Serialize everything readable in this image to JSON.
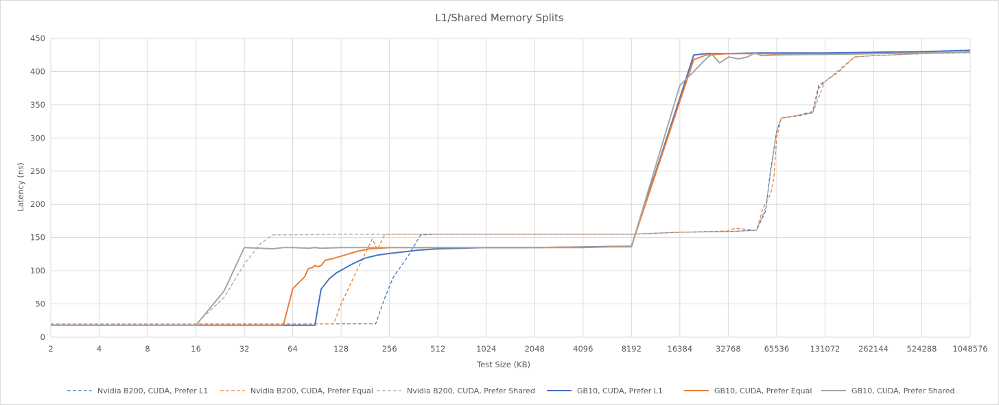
{
  "chart_data": {
    "type": "line",
    "title": "L1/Shared Memory Splits",
    "xlabel": "Test Size (KB)",
    "ylabel": "Latency (ns)",
    "x_scale": "log2",
    "xlim": [
      2,
      1048576
    ],
    "ylim": [
      0,
      450
    ],
    "x_ticks": [
      "2",
      "4",
      "8",
      "16",
      "32",
      "64",
      "128",
      "256",
      "512",
      "1024",
      "2048",
      "4096",
      "8192",
      "16384",
      "32768",
      "65536",
      "131072",
      "262144",
      "524288",
      "1048576"
    ],
    "y_ticks": [
      "0",
      "50",
      "100",
      "150",
      "200",
      "250",
      "300",
      "350",
      "400",
      "450"
    ],
    "grid": true,
    "legend_position": "bottom",
    "series": [
      {
        "name": "Nvidia B200, CUDA, Prefer L1",
        "color": "#4472c4",
        "dash": "dashed",
        "points": [
          [
            2,
            20
          ],
          [
            16,
            20
          ],
          [
            64,
            20
          ],
          [
            128,
            20
          ],
          [
            160,
            20
          ],
          [
            210,
            20
          ],
          [
            240,
            60
          ],
          [
            270,
            90
          ],
          [
            330,
            120
          ],
          [
            400,
            154
          ],
          [
            512,
            155
          ],
          [
            1024,
            155
          ],
          [
            4096,
            155
          ],
          [
            8192,
            155
          ],
          [
            16384,
            158
          ],
          [
            32768,
            159
          ],
          [
            49152,
            161
          ],
          [
            56000,
            190
          ],
          [
            60000,
            250
          ],
          [
            65536,
            310
          ],
          [
            70000,
            330
          ],
          [
            90000,
            334
          ],
          [
            110000,
            340
          ],
          [
            120000,
            380
          ],
          [
            131072,
            385
          ],
          [
            160000,
            400
          ],
          [
            200000,
            422
          ],
          [
            262144,
            424
          ],
          [
            524288,
            427
          ],
          [
            1048576,
            430
          ]
        ]
      },
      {
        "name": "Nvidia B200, CUDA, Prefer Equal",
        "color": "#ed7d31",
        "dash": "dashed",
        "points": [
          [
            2,
            20
          ],
          [
            16,
            20
          ],
          [
            64,
            20
          ],
          [
            100,
            20
          ],
          [
            115,
            20
          ],
          [
            128,
            50
          ],
          [
            160,
            100
          ],
          [
            200,
            148
          ],
          [
            215,
            132
          ],
          [
            240,
            155
          ],
          [
            512,
            155
          ],
          [
            1024,
            155
          ],
          [
            4096,
            155
          ],
          [
            8192,
            155
          ],
          [
            16384,
            158
          ],
          [
            32768,
            160
          ],
          [
            36000,
            164
          ],
          [
            49152,
            161
          ],
          [
            54000,
            195
          ],
          [
            60000,
            215
          ],
          [
            63000,
            240
          ],
          [
            65536,
            300
          ],
          [
            70000,
            330
          ],
          [
            90000,
            333
          ],
          [
            110000,
            338
          ],
          [
            120000,
            375
          ],
          [
            131072,
            385
          ],
          [
            160000,
            400
          ],
          [
            200000,
            422
          ],
          [
            262144,
            424
          ],
          [
            524288,
            427
          ],
          [
            1048576,
            429
          ]
        ]
      },
      {
        "name": "Nvidia B200, CUDA, Prefer Shared",
        "color": "#a5a5a5",
        "dash": "dashed",
        "points": [
          [
            2,
            20
          ],
          [
            16,
            20
          ],
          [
            24,
            60
          ],
          [
            32,
            110
          ],
          [
            40,
            140
          ],
          [
            48,
            154
          ],
          [
            64,
            154
          ],
          [
            128,
            155
          ],
          [
            256,
            155
          ],
          [
            512,
            155
          ],
          [
            1024,
            155
          ],
          [
            4096,
            155
          ],
          [
            8192,
            155
          ],
          [
            16384,
            158
          ],
          [
            32768,
            159
          ],
          [
            49152,
            161
          ],
          [
            56000,
            195
          ],
          [
            65536,
            310
          ],
          [
            70000,
            330
          ],
          [
            110000,
            338
          ],
          [
            131072,
            385
          ],
          [
            200000,
            422
          ],
          [
            262144,
            424
          ],
          [
            524288,
            427
          ],
          [
            1048576,
            428
          ]
        ]
      },
      {
        "name": "GB10, CUDA, Prefer L1",
        "color": "#4472c4",
        "dash": "solid",
        "points": [
          [
            2,
            18
          ],
          [
            16,
            18
          ],
          [
            64,
            18
          ],
          [
            88,
            18
          ],
          [
            96,
            72
          ],
          [
            108,
            88
          ],
          [
            120,
            97
          ],
          [
            150,
            110
          ],
          [
            180,
            119
          ],
          [
            220,
            124
          ],
          [
            256,
            126
          ],
          [
            384,
            131
          ],
          [
            512,
            133
          ],
          [
            1024,
            135
          ],
          [
            2048,
            135
          ],
          [
            4096,
            136
          ],
          [
            8192,
            137
          ],
          [
            16384,
            360
          ],
          [
            20000,
            425
          ],
          [
            24000,
            427
          ],
          [
            32768,
            427
          ],
          [
            49152,
            428
          ],
          [
            131072,
            428
          ],
          [
            262144,
            429
          ],
          [
            524288,
            430
          ],
          [
            1048576,
            432
          ]
        ]
      },
      {
        "name": "GB10, CUDA, Prefer Equal",
        "color": "#ed7d31",
        "dash": "solid",
        "points": [
          [
            2,
            18
          ],
          [
            16,
            18
          ],
          [
            56,
            18
          ],
          [
            64,
            73
          ],
          [
            76,
            91
          ],
          [
            80,
            103
          ],
          [
            85,
            105
          ],
          [
            88,
            108
          ],
          [
            92,
            106
          ],
          [
            96,
            108
          ],
          [
            102,
            116
          ],
          [
            112,
            118
          ],
          [
            128,
            122
          ],
          [
            160,
            129
          ],
          [
            192,
            133
          ],
          [
            224,
            134
          ],
          [
            256,
            135
          ],
          [
            512,
            135
          ],
          [
            1024,
            135
          ],
          [
            4096,
            135
          ],
          [
            8192,
            137
          ],
          [
            16384,
            355
          ],
          [
            20000,
            418
          ],
          [
            24000,
            425
          ],
          [
            32768,
            427
          ],
          [
            49152,
            427
          ],
          [
            131072,
            426
          ],
          [
            262144,
            427
          ],
          [
            524288,
            428
          ],
          [
            1048576,
            429
          ]
        ]
      },
      {
        "name": "GB10, CUDA, Prefer Shared",
        "color": "#a5a5a5",
        "dash": "solid",
        "points": [
          [
            2,
            18
          ],
          [
            16,
            18
          ],
          [
            24,
            70
          ],
          [
            32,
            135
          ],
          [
            40,
            134
          ],
          [
            48,
            133
          ],
          [
            56,
            135
          ],
          [
            64,
            135
          ],
          [
            80,
            134
          ],
          [
            88,
            135
          ],
          [
            96,
            134
          ],
          [
            128,
            135
          ],
          [
            256,
            135
          ],
          [
            512,
            135
          ],
          [
            1024,
            135
          ],
          [
            2048,
            135
          ],
          [
            4096,
            136
          ],
          [
            8192,
            136
          ],
          [
            16384,
            379
          ],
          [
            20000,
            400
          ],
          [
            24000,
            420
          ],
          [
            26000,
            426
          ],
          [
            29000,
            413
          ],
          [
            33000,
            422
          ],
          [
            38000,
            419
          ],
          [
            43000,
            422
          ],
          [
            48000,
            428
          ],
          [
            53000,
            424
          ],
          [
            65536,
            425
          ],
          [
            131072,
            426
          ],
          [
            262144,
            427
          ],
          [
            524288,
            428
          ],
          [
            1048576,
            429
          ]
        ]
      }
    ]
  }
}
